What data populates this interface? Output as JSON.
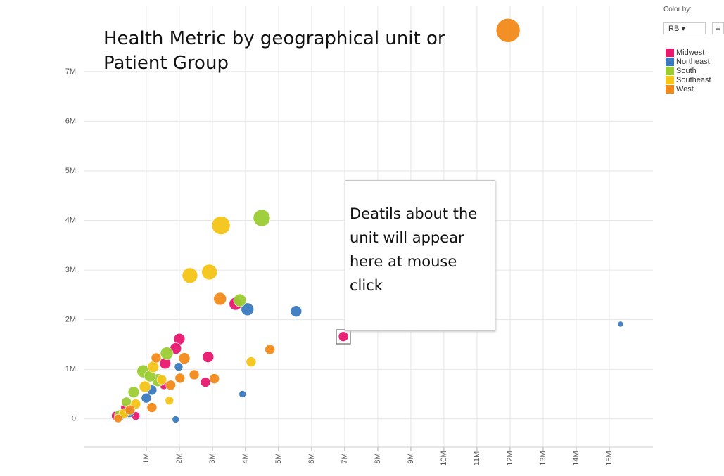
{
  "chart_data": {
    "type": "scatter",
    "title": "Health Metric by geographical unit or Patient Group",
    "xlim": [
      -870000,
      16320000
    ],
    "ylim": [
      -570000,
      8330000
    ],
    "xticks": [
      {
        "value": 1000000,
        "label": "1M"
      },
      {
        "value": 2000000,
        "label": "2M"
      },
      {
        "value": 3000000,
        "label": "3M"
      },
      {
        "value": 4000000,
        "label": "4M"
      },
      {
        "value": 5000000,
        "label": "5M"
      },
      {
        "value": 6000000,
        "label": "6M"
      },
      {
        "value": 7000000,
        "label": "7M"
      },
      {
        "value": 8000000,
        "label": "8M"
      },
      {
        "value": 9000000,
        "label": "9M"
      },
      {
        "value": 10000000,
        "label": "10M"
      },
      {
        "value": 11000000,
        "label": "11M"
      },
      {
        "value": 12000000,
        "label": "12M"
      },
      {
        "value": 13000000,
        "label": "13M"
      },
      {
        "value": 14000000,
        "label": "14M"
      },
      {
        "value": 15000000,
        "label": "15M"
      }
    ],
    "yticks": [
      0,
      {
        "value": 1000000,
        "label": "1M"
      },
      {
        "value": 2000000,
        "label": "2M"
      },
      {
        "value": 3000000,
        "label": "3M"
      },
      {
        "value": 4000000,
        "label": "4M"
      },
      {
        "value": 5000000,
        "label": "5M"
      },
      {
        "value": 6000000,
        "label": "6M"
      },
      {
        "value": 7000000,
        "label": "7M"
      }
    ],
    "grid": true,
    "legend_position": "top-right",
    "series": [
      {
        "name": "Midwest",
        "color": "#e8196f",
        "x": [
          6960000,
          3700000,
          2000000,
          1890000,
          2870000,
          2790000,
          1570000,
          1530000,
          100000,
          680000,
          360000
        ],
        "values": [
          1660000,
          2320000,
          1610000,
          1420000,
          1250000,
          740000,
          1120000,
          680000,
          60000,
          60000,
          230000
        ],
        "sizes": [
          7,
          9,
          8,
          8,
          8,
          7,
          8,
          6,
          7,
          6,
          6
        ]
      },
      {
        "name": "Northeast",
        "color": "#3a7bbf",
        "x": [
          15340000,
          5530000,
          4060000,
          3910000,
          1890000,
          1980000,
          1170000,
          1000000,
          490000,
          230000
        ],
        "values": [
          1910000,
          2170000,
          2210000,
          500000,
          -10000,
          1050000,
          580000,
          420000,
          130000,
          40000
        ],
        "sizes": [
          4,
          8,
          9,
          5,
          5,
          6,
          7,
          7,
          7,
          5
        ]
      },
      {
        "name": "South",
        "color": "#9acd32",
        "x": [
          4490000,
          3830000,
          1620000,
          910000,
          1360000,
          1110000,
          620000,
          400000,
          190000
        ],
        "values": [
          4050000,
          2390000,
          1320000,
          960000,
          780000,
          860000,
          540000,
          340000,
          80000
        ],
        "sizes": [
          12,
          9,
          9,
          9,
          9,
          8,
          8,
          7,
          7
        ]
      },
      {
        "name": "Southeast",
        "color": "#f5c518",
        "x": [
          3260000,
          2320000,
          2910000,
          4170000,
          1700000,
          1210000,
          1470000,
          960000,
          680000,
          320000
        ],
        "values": [
          3900000,
          2890000,
          2960000,
          1150000,
          370000,
          1050000,
          790000,
          650000,
          300000,
          110000
        ],
        "sizes": [
          13,
          11,
          11,
          7,
          6,
          8,
          7,
          8,
          7,
          7
        ]
      },
      {
        "name": "West",
        "color": "#f28a1a",
        "x": [
          11940000,
          3230000,
          4740000,
          2150000,
          1300000,
          2450000,
          3060000,
          2020000,
          1740000,
          1170000,
          510000,
          150000
        ],
        "values": [
          7830000,
          2420000,
          1400000,
          1220000,
          1230000,
          890000,
          810000,
          820000,
          680000,
          230000,
          180000,
          10000
        ],
        "sizes": [
          17,
          9,
          7,
          8,
          7,
          7,
          7,
          7,
          7,
          7,
          7,
          6
        ]
      }
    ],
    "annotation": "Deatils about the unit will appear here at mouse click"
  },
  "controls": {
    "color_by": "Color by:",
    "dropdown": "RB ▾",
    "add": "+"
  }
}
